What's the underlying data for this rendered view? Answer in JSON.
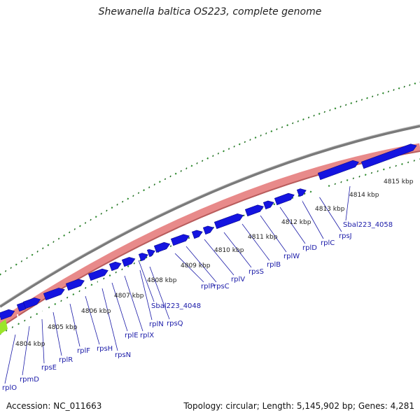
{
  "title": "Shewanella baltica OS223, complete genome",
  "footer": {
    "accession": "Accession: NC_011663",
    "stats": "Topology: circular; Length: 5,145,902 bp; Genes: 4,281"
  },
  "colors": {
    "forward_gene": "#1414e0",
    "reverse_gene": "#e88a8a",
    "backbone": "#7a7a7a",
    "tick": "#2e8b2e",
    "label": "#1a1aa8",
    "highlight": "#9be52a"
  },
  "kbp_ticks": [
    "4804 kbp",
    "4805 kbp",
    "4806 kbp",
    "4807 kbp",
    "4808 kbp",
    "4809 kbp",
    "4810 kbp",
    "4811 kbp",
    "4812 kbp",
    "4813 kbp",
    "4814 kbp",
    "4815 kbp"
  ],
  "gene_labels": [
    "rplO",
    "rpmD",
    "rpsE",
    "rplR",
    "rplF",
    "rpsH",
    "rpsN",
    "rplE",
    "rplX",
    "rplN",
    "rpsQ",
    "Sbal223_4048",
    "rplP",
    "rpsC",
    "rplV",
    "rpsS",
    "rplB",
    "rplW",
    "rplD",
    "rplC",
    "rpsJ",
    "Sbal223_4058"
  ]
}
